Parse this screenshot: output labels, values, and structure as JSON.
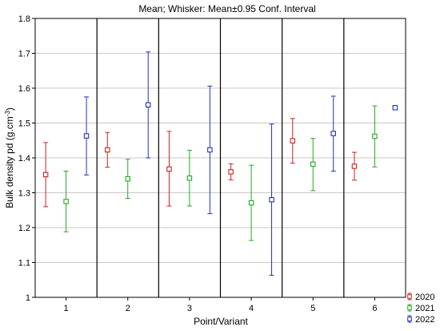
{
  "chart_data": {
    "type": "scatter",
    "title": "Mean; Whisker: Mean±0.95 Conf. Interval",
    "xlabel": "Point/Variant",
    "ylabel_main": "Bulk density pd (g.cm",
    "ylabel_sup": "-3",
    "ylabel_close": ")",
    "categories": [
      "1",
      "2",
      "3",
      "4",
      "5",
      "6"
    ],
    "ylim": [
      1.0,
      1.8
    ],
    "yticks": [
      "1",
      "1.1",
      "1.2",
      "1.3",
      "1.4",
      "1.5",
      "1.6",
      "1.7",
      "1.8"
    ],
    "grid": true,
    "legend_position": "bottom-right",
    "series": [
      {
        "name": "2020",
        "color": "#cc2222",
        "mean": [
          1.352,
          1.423,
          1.368,
          1.36,
          1.449,
          1.376
        ],
        "lower": [
          1.26,
          1.373,
          1.262,
          1.337,
          1.385,
          1.336
        ],
        "upper": [
          1.444,
          1.473,
          1.476,
          1.383,
          1.513,
          1.416
        ]
      },
      {
        "name": "2021",
        "color": "#22aa22",
        "mean": [
          1.275,
          1.34,
          1.342,
          1.271,
          1.382,
          1.462
        ],
        "lower": [
          1.188,
          1.284,
          1.262,
          1.163,
          1.306,
          1.374
        ],
        "upper": [
          1.362,
          1.396,
          1.422,
          1.379,
          1.456,
          1.549
        ]
      },
      {
        "name": "2022",
        "color": "#2233bb",
        "mean": [
          1.463,
          1.552,
          1.423,
          1.28,
          1.47,
          1.544
        ],
        "lower": [
          1.351,
          1.4,
          1.24,
          1.063,
          1.362,
          1.538
        ],
        "upper": [
          1.575,
          1.704,
          1.606,
          1.497,
          1.577,
          1.55
        ]
      }
    ]
  }
}
